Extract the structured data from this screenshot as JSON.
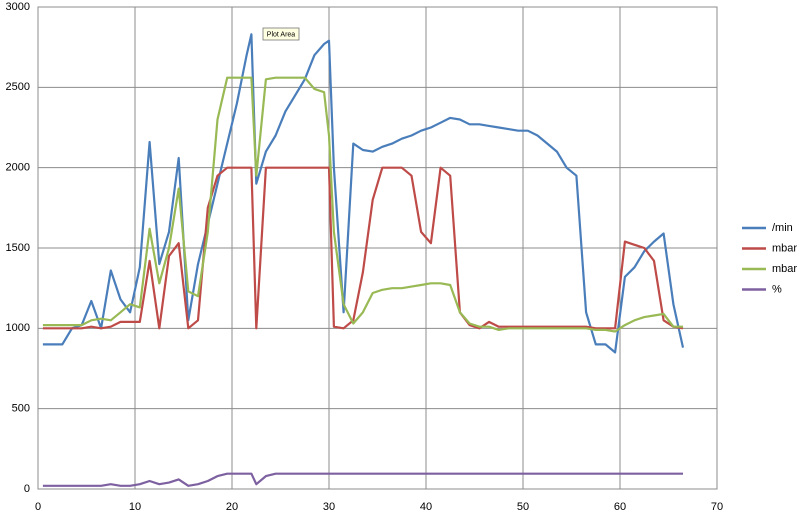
{
  "chart_data": {
    "type": "line",
    "annotation": "Plot Area",
    "x": [
      0.5,
      1.5,
      2.5,
      3.5,
      4.5,
      5.5,
      6.5,
      7.5,
      8.5,
      9.5,
      10.5,
      11.5,
      12.5,
      13.5,
      14.5,
      15.5,
      16.5,
      17.5,
      18.5,
      19.5,
      20.5,
      21.5,
      22,
      22.5,
      23.5,
      24.5,
      25.5,
      26.5,
      27.5,
      28.5,
      29.5,
      30,
      30.5,
      31.5,
      32.5,
      33.5,
      34.5,
      35.5,
      36.5,
      37.5,
      38.5,
      39.5,
      40.5,
      41.5,
      42.5,
      43.5,
      44.5,
      45.5,
      46.5,
      47.5,
      48.5,
      49.5,
      50.5,
      51.5,
      52.5,
      53.5,
      54.5,
      55.5,
      56.5,
      57.5,
      58.5,
      59.5,
      60.5,
      61.5,
      62.5,
      63.5,
      64.5,
      65.5,
      66.5
    ],
    "series": [
      {
        "name": "/min",
        "color": "#4a7ebb",
        "values": [
          900,
          900,
          900,
          1000,
          1020,
          1170,
          1000,
          1360,
          1180,
          1100,
          1380,
          2160,
          1400,
          1600,
          2060,
          1050,
          1400,
          1650,
          1900,
          2150,
          2400,
          2700,
          2830,
          1900,
          2100,
          2200,
          2350,
          2450,
          2550,
          2700,
          2770,
          2790,
          2000,
          1100,
          2150,
          2110,
          2100,
          2130,
          2150,
          2180,
          2200,
          2230,
          2250,
          2280,
          2310,
          2300,
          2270,
          2270,
          2260,
          2250,
          2240,
          2230,
          2230,
          2200,
          2150,
          2100,
          2000,
          1950,
          1100,
          900,
          900,
          850,
          1320,
          1380,
          1480,
          1540,
          1590,
          1150,
          880
        ]
      },
      {
        "name": "mbar",
        "color": "#be4b48",
        "values": [
          1000,
          1000,
          1000,
          1000,
          1000,
          1010,
          1000,
          1010,
          1040,
          1040,
          1040,
          1420,
          1000,
          1450,
          1530,
          1000,
          1050,
          1750,
          1950,
          2000,
          2000,
          2000,
          2000,
          1000,
          2000,
          2000,
          2000,
          2000,
          2000,
          2000,
          2000,
          2000,
          1010,
          1000,
          1050,
          1350,
          1800,
          2000,
          2000,
          2000,
          1950,
          1600,
          1530,
          2000,
          1950,
          1100,
          1020,
          1000,
          1040,
          1010,
          1010,
          1010,
          1010,
          1010,
          1010,
          1010,
          1010,
          1010,
          1010,
          1000,
          1000,
          1000,
          1540,
          1520,
          1500,
          1420,
          1050,
          1010,
          1000
        ]
      },
      {
        "name": "mbar",
        "color": "#98b954",
        "values": [
          1020,
          1020,
          1020,
          1020,
          1020,
          1050,
          1060,
          1050,
          1100,
          1150,
          1130,
          1620,
          1280,
          1500,
          1870,
          1230,
          1200,
          1600,
          2300,
          2560,
          2560,
          2560,
          2560,
          1950,
          2550,
          2560,
          2560,
          2560,
          2560,
          2490,
          2470,
          2200,
          1600,
          1150,
          1030,
          1100,
          1220,
          1240,
          1250,
          1250,
          1260,
          1270,
          1280,
          1280,
          1270,
          1100,
          1030,
          1010,
          1010,
          990,
          1000,
          1000,
          1000,
          1000,
          1000,
          1000,
          1000,
          1000,
          1000,
          990,
          990,
          980,
          1020,
          1050,
          1070,
          1080,
          1090,
          1010,
          1010
        ]
      },
      {
        "name": "%",
        "color": "#7d60a0",
        "values": [
          20,
          20,
          20,
          20,
          20,
          20,
          20,
          30,
          20,
          20,
          30,
          50,
          30,
          40,
          60,
          20,
          30,
          50,
          80,
          95,
          95,
          95,
          95,
          30,
          80,
          95,
          95,
          95,
          95,
          95,
          95,
          95,
          95,
          95,
          95,
          95,
          95,
          95,
          95,
          95,
          95,
          95,
          95,
          95,
          95,
          95,
          95,
          95,
          95,
          95,
          95,
          95,
          95,
          95,
          95,
          95,
          95,
          95,
          95,
          95,
          95,
          95,
          95,
          95,
          95,
          95,
          95,
          95,
          95
        ]
      }
    ],
    "xlim": [
      0,
      70
    ],
    "xticks": [
      0,
      10,
      20,
      30,
      40,
      50,
      60,
      70
    ],
    "ylim": [
      0,
      3000
    ],
    "yticks": [
      0,
      500,
      1000,
      1500,
      2000,
      2500,
      3000
    ],
    "grid": true,
    "legend": "right"
  }
}
